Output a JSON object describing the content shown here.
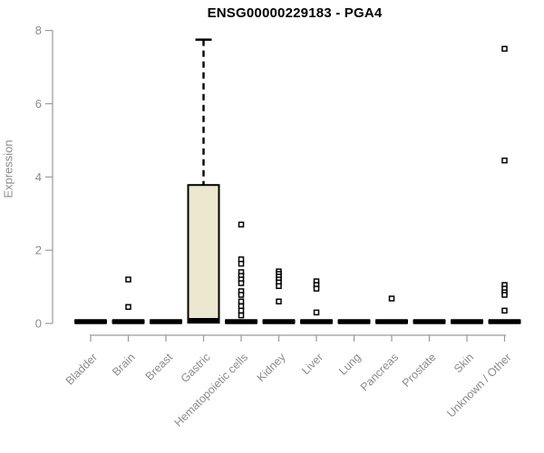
{
  "chart_data": {
    "type": "boxplot",
    "title": "ENSG00000229183 - PGA4",
    "ylabel": "Expression",
    "xlabel": "",
    "ylim": [
      0,
      8
    ],
    "yticks": [
      0,
      2,
      4,
      6,
      8
    ],
    "grid": false,
    "legend": false,
    "colors": {
      "box_fill": "#ece8cf",
      "box_stroke": "#000000",
      "median": "#000000",
      "axis_line": "#9a9a9a",
      "tick_text": "#8b8b8b",
      "title_text": "#000000",
      "outlier_stroke": "#000000",
      "outlier_fill": "#ffffff"
    },
    "categories": [
      "Bladder",
      "Brain",
      "Breast",
      "Gastric",
      "Hematopoietic cells",
      "Kidney",
      "Liver",
      "Lung",
      "Pancreas",
      "Prostate",
      "Skin",
      "Unknown / Other"
    ],
    "series": [
      {
        "name": "Bladder",
        "q1": 0,
        "median": 0.05,
        "q3": 0.1,
        "whisker_low": 0,
        "whisker_high": 0.1,
        "outliers": []
      },
      {
        "name": "Brain",
        "q1": 0,
        "median": 0.05,
        "q3": 0.1,
        "whisker_low": 0,
        "whisker_high": 0.1,
        "outliers": [
          1.2,
          0.45
        ]
      },
      {
        "name": "Breast",
        "q1": 0,
        "median": 0.05,
        "q3": 0.1,
        "whisker_low": 0,
        "whisker_high": 0.1,
        "outliers": []
      },
      {
        "name": "Gastric",
        "q1": 0.02,
        "median": 0.08,
        "q3": 3.78,
        "whisker_low": 0.02,
        "whisker_high": 7.75,
        "outliers": []
      },
      {
        "name": "Hematopoietic cells",
        "q1": 0,
        "median": 0.05,
        "q3": 0.1,
        "whisker_low": 0,
        "whisker_high": 0.1,
        "outliers": [
          2.7,
          1.75,
          1.63,
          1.4,
          1.3,
          1.2,
          1.1,
          0.88,
          0.78,
          0.6,
          0.47,
          0.35,
          0.22
        ]
      },
      {
        "name": "Kidney",
        "q1": 0,
        "median": 0.05,
        "q3": 0.1,
        "whisker_low": 0,
        "whisker_high": 0.1,
        "outliers": [
          1.42,
          1.35,
          1.28,
          1.2,
          1.12,
          1.02,
          0.6
        ]
      },
      {
        "name": "Liver",
        "q1": 0,
        "median": 0.05,
        "q3": 0.1,
        "whisker_low": 0,
        "whisker_high": 0.1,
        "outliers": [
          1.15,
          1.05,
          0.95,
          0.3
        ]
      },
      {
        "name": "Lung",
        "q1": 0,
        "median": 0.05,
        "q3": 0.1,
        "whisker_low": 0,
        "whisker_high": 0.1,
        "outliers": []
      },
      {
        "name": "Pancreas",
        "q1": 0,
        "median": 0.05,
        "q3": 0.1,
        "whisker_low": 0,
        "whisker_high": 0.1,
        "outliers": [
          0.68
        ]
      },
      {
        "name": "Prostate",
        "q1": 0,
        "median": 0.05,
        "q3": 0.1,
        "whisker_low": 0,
        "whisker_high": 0.1,
        "outliers": []
      },
      {
        "name": "Skin",
        "q1": 0,
        "median": 0.05,
        "q3": 0.1,
        "whisker_low": 0,
        "whisker_high": 0.1,
        "outliers": []
      },
      {
        "name": "Unknown / Other",
        "q1": 0,
        "median": 0.05,
        "q3": 0.1,
        "whisker_low": 0,
        "whisker_high": 0.1,
        "outliers": [
          7.5,
          4.45,
          1.05,
          0.95,
          0.85,
          0.78,
          0.35
        ]
      }
    ]
  }
}
